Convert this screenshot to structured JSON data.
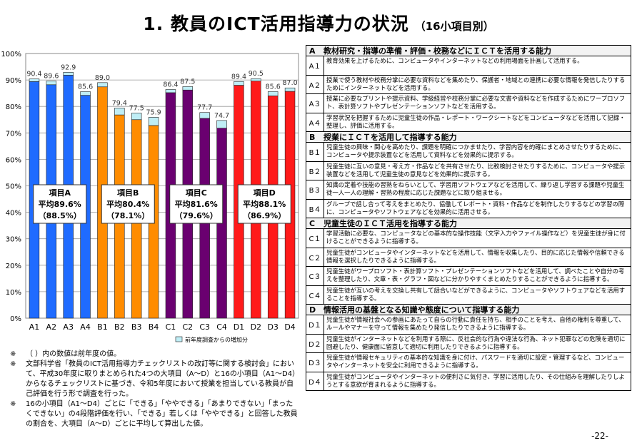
{
  "title": {
    "main": "1. 教員のICT活用指導力の状況",
    "sub": "（16小項目別）"
  },
  "chart_data": {
    "type": "bar",
    "categories": [
      "A1",
      "A2",
      "A3",
      "A4",
      "B1",
      "B2",
      "B3",
      "B4",
      "C1",
      "C2",
      "C3",
      "C4",
      "D1",
      "D2",
      "D3",
      "D4"
    ],
    "groups": [
      "A",
      "A",
      "A",
      "A",
      "B",
      "B",
      "B",
      "B",
      "C",
      "C",
      "C",
      "C",
      "D",
      "D",
      "D",
      "D"
    ],
    "series": [
      {
        "values": [
          90.4,
          89.6,
          92.9,
          85.6,
          89.0,
          79.4,
          77.5,
          75.9,
          86.4,
          87.5,
          77.7,
          74.7,
          89.4,
          90.5,
          85.6,
          87.0
        ]
      }
    ],
    "previous_year_values": [
      89.4,
      88.2,
      91.8,
      84.2,
      87.4,
      76.8,
      75.0,
      72.8,
      85.2,
      86.2,
      75.5,
      71.8,
      88.0,
      89.6,
      84.0,
      85.7
    ],
    "value_labels": [
      "90.4",
      "89.6",
      "92.9",
      "85.6",
      "89.0",
      "79.4",
      "77.5",
      "75.9",
      "86.4",
      "87.5",
      "77.7",
      "74.7",
      "89.4",
      "90.5",
      "85.6",
      "87.0"
    ],
    "ylim": [
      0,
      100
    ],
    "yticks": [
      "0%",
      "10%",
      "20%",
      "30%",
      "40%",
      "50%",
      "60%",
      "70%",
      "80%",
      "90%",
      "100%"
    ],
    "grid": true,
    "legend": [
      {
        "label": "前年度調査からの増加分",
        "color": "#bfeef6"
      }
    ],
    "colors": {
      "A": "#1f6bff",
      "B": "#ff8c00",
      "C": "#6a0070",
      "D": "#ff1a1a",
      "increase": "#bfeef6"
    },
    "group_labels": [
      {
        "name": "項目A",
        "avg": "平均89.6%",
        "prev": "（88.5%）"
      },
      {
        "name": "項目B",
        "avg": "平均80.4%",
        "prev": "（78.1%）"
      },
      {
        "name": "項目C",
        "avg": "平均81.6%",
        "prev": "（79.6%）"
      },
      {
        "name": "項目D",
        "avg": "平均88.1%",
        "prev": "（86.9%）"
      }
    ]
  },
  "notes": [
    {
      "mark": "※",
      "text": "（ ）内の数値は前年度の値。"
    },
    {
      "mark": "※",
      "text": "文部科学省「教員のICT活用指導力チェックリストの改訂等に関する検討会」において、平成30年度に取りまとめられた4つの大項目（A～D）と16の小項目（A1～D4）からなるチェックリストに基づき、令和5年度において授業を担当している教員が自己評価を行う形で調査を行った。"
    },
    {
      "mark": "※",
      "text": "16の小項目（A1～D4）ごとに「できる」「ややできる」「あまりできない」「まったくできない」の4段階評価を行い、「できる」若しくは「ややできる」と回答した教員の割合を、大項目（A～D）ごとに平均して算出した値。"
    }
  ],
  "table": [
    {
      "code": "A",
      "heading": "教材研究・指導の準備・評価・校務などにＩＣＴを活用する能力",
      "items": [
        {
          "code": "A１",
          "text": "教育効果を上げるために、コンピュータやインターネットなどの利用場面を計画して活用する。"
        },
        {
          "code": "A２",
          "text": "授業で使う教材や校務分掌に必要な資料などを集めたり、保護者・地域との連携に必要な情報を発信したりするためにインターネットなどを活用する。"
        },
        {
          "code": "A３",
          "text": "授業に必要なプリントや提示資料、学級経営や校務分掌に必要な文書や資料などを作成するためにワープロソフト、表計算ソフトやプレゼンテーションソフトなどを活用する。"
        },
        {
          "code": "A４",
          "text": "学習状況を把握するために児童生徒の作品・レポート・ワークシートなどをコンピュータなどを活用して記録・整理し、評価に活用する。"
        }
      ]
    },
    {
      "code": "B",
      "heading": "授業にＩＣＴを活用して指導する能力",
      "items": [
        {
          "code": "B１",
          "text": "児童生徒の興味・関心を高めたり、課題を明確につかませたり、学習内容を的確にまとめさせたりするために、コンピュータや提示装置などを活用して資料などを効果的に提示する。"
        },
        {
          "code": "B２",
          "text": "児童生徒に互いの意見・考え方・作品などを共有させたり、比較検討させたりするために、コンピュータや提示装置などを活用して児童生徒の意見などを効果的に提示する。"
        },
        {
          "code": "B３",
          "text": "知識の定着や技能の習熟をねらいとして、学習用ソフトウェアなどを活用して、繰り返し学習する課題や児童生徒一人一人の理解・習熟の程度に応じた課題などに取り組ませる。"
        },
        {
          "code": "B４",
          "text": "グループで話し合って考えをまとめたり、協働してレポート・資料・作品などを制作したりするなどの学習の際に、コンピュータやソフトウェアなどを効果的に活用させる。"
        }
      ]
    },
    {
      "code": "C",
      "heading": "児童生徒のＩＣＴ活用を指導する能力",
      "items": [
        {
          "code": "C１",
          "text": "学習活動に必要な、コンピュータなどの基本的な操作技能（文字入力やファイル操作など）を児童生徒が身に付けることができるように指導する。"
        },
        {
          "code": "C２",
          "text": "児童生徒がコンピュータやインターネットなどを活用して、情報を収集したり、目的に応じた情報や信頼できる情報を選択したりできるように指導する。"
        },
        {
          "code": "C３",
          "text": "児童生徒がワープロソフト・表計算ソフト・プレゼンテーションソフトなどを活用して、調べたことや自分の考えを整理したり、文章・表・グラフ・図などに分かりやすくまとめたりすることができるように指導する。"
        },
        {
          "code": "C４",
          "text": "児童生徒が互いの考えを交換し共有して話合いなどができるように、コンピュータやソフトウェアなどを活用することを指導する。"
        }
      ]
    },
    {
      "code": "D",
      "heading": "情報活用の基盤となる知識や態度について指導する能力",
      "items": [
        {
          "code": "D１",
          "text": "児童生徒が情報社会への参画にあたって自らの行動に責任を持ち、相手のことを考え、自他の権利を尊重して、ルールやマナーを守って情報を集めたり発信したりできるように指導する。"
        },
        {
          "code": "D２",
          "text": "児童生徒がインターネットなどを利用する際に、反社会的な行為や違法な行為、ネット犯罪などの危険を適切に回避したり、健康面に留意して適切に利用したりできるように指導する。"
        },
        {
          "code": "D３",
          "text": "児童生徒が情報セキュリティの基本的な知識を身に付け、パスワードを適切に設定・管理するなど、コンピュータやインターネットを安全に利用できるように指導する。"
        },
        {
          "code": "D４",
          "text": "児童生徒がコンピュータやインターネットの便利さに気付き、学習に活用したり、その仕組みを理解したりしようとする意欲が育まれるように指導する。"
        }
      ]
    }
  ],
  "page_number": "-22-"
}
